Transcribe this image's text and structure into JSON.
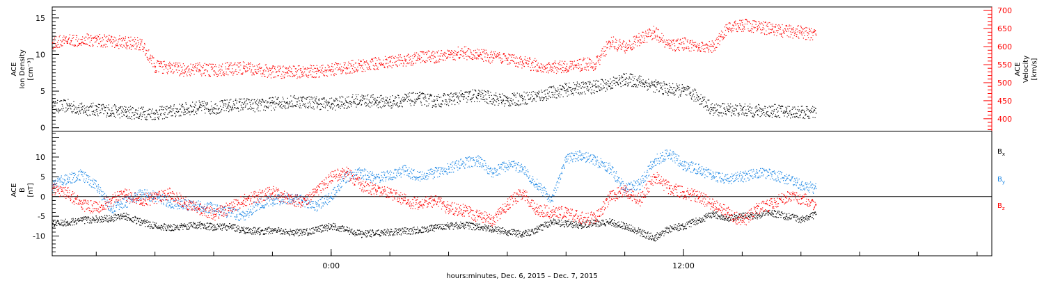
{
  "xaxis": {
    "label": "hours:minutes, Dec.  6, 2015 – Dec.  7, 2015",
    "range": [
      -9.5,
      22.5
    ],
    "tick_labels": [
      {
        "x": 0,
        "label": "0:00"
      },
      {
        "x": 12,
        "label": "12:00"
      }
    ],
    "minor_ticks": [
      -8,
      -6,
      -4,
      -2,
      0,
      2,
      4,
      6,
      8,
      10,
      12,
      14,
      16,
      18,
      20,
      22
    ]
  },
  "chart_data": [
    {
      "type": "scatter",
      "ylabel_left": [
        "ACE",
        "Ion Density",
        "[cm⁻³]"
      ],
      "ylabel_right": [
        "ACE",
        "Velocity",
        "[km/s]"
      ],
      "ylim_left": [
        -0.5,
        16.5
      ],
      "yticks_left": [
        0,
        5,
        10,
        15
      ],
      "ylim_right": [
        365,
        710
      ],
      "yticks_right": [
        400,
        450,
        500,
        550,
        600,
        650,
        700
      ],
      "grid": false,
      "colors": {
        "density": "#000000",
        "velocity": "#ff0000"
      },
      "series": [
        {
          "axis": "left",
          "color": "#000000",
          "x": [
            -9.5,
            -9,
            -8.5,
            -8,
            -7.5,
            -7,
            -6.5,
            -6,
            -5.5,
            -5,
            -4.5,
            -4,
            -3.5,
            -3,
            -2.5,
            -2,
            -1.5,
            -1,
            -0.5,
            0,
            0.5,
            1,
            1.5,
            2,
            2.5,
            3,
            3.5,
            4,
            4.5,
            5,
            5.5,
            6,
            6.5,
            7,
            7.5,
            8,
            8.5,
            9,
            9.5,
            10,
            10.5,
            11,
            11.5,
            12,
            12.5,
            13,
            13.5,
            14,
            14.5,
            15,
            15.5,
            16,
            16.5
          ],
          "values": [
            2.8,
            3,
            2.5,
            2.5,
            2.3,
            2.1,
            2,
            1.9,
            2.2,
            2.5,
            2.8,
            2.7,
            3,
            3.2,
            3,
            3.3,
            3.5,
            3.6,
            3.4,
            3.2,
            3.5,
            3.8,
            3.6,
            3.5,
            3.8,
            4,
            3.6,
            3.9,
            4.2,
            4.4,
            4,
            3.7,
            4,
            4.3,
            4.8,
            5.2,
            5.4,
            5.6,
            6,
            6.6,
            6.3,
            5.7,
            5.2,
            5,
            4.2,
            2.4,
            2.5,
            2.4,
            2.3,
            2.3,
            2.2,
            2.1,
            2.0
          ]
        },
        {
          "axis": "right",
          "color": "#ff0000",
          "x": [
            -9.5,
            -9,
            -8.5,
            -8,
            -7.5,
            -7,
            -6.5,
            -6,
            -5.5,
            -5,
            -4.5,
            -4,
            -3.5,
            -3,
            -2.5,
            -2,
            -1.5,
            -1,
            -0.5,
            0,
            0.5,
            1,
            1.5,
            2,
            2.5,
            3,
            3.5,
            4,
            4.5,
            5,
            5.5,
            6,
            6.5,
            7,
            7.5,
            8,
            8.5,
            9,
            9.5,
            10,
            10.5,
            11,
            11.5,
            12,
            12.5,
            13,
            13.5,
            14,
            14.5,
            15,
            15.5,
            16,
            16.5
          ],
          "values": [
            610,
            615,
            620,
            618,
            614,
            610,
            608,
            545,
            540,
            535,
            537,
            533,
            538,
            540,
            536,
            530,
            528,
            530,
            532,
            537,
            542,
            548,
            553,
            558,
            562,
            568,
            572,
            578,
            583,
            576,
            570,
            562,
            556,
            548,
            543,
            545,
            550,
            552,
            612,
            598,
            620,
            640,
            602,
            608,
            596,
            600,
            650,
            660,
            655,
            648,
            642,
            640,
            632
          ]
        }
      ]
    },
    {
      "type": "scatter",
      "ylabel_left": [
        "ACE",
        "B",
        "[nT]"
      ],
      "ylim": [
        -15,
        16.5
      ],
      "yticks": [
        -10,
        -5,
        0,
        5,
        10
      ],
      "grid": false,
      "zero_line": true,
      "legend_position": "right",
      "colors": {
        "Bx": "#000000",
        "By": "#1e88e5",
        "Bz": "#ff0000"
      },
      "series": [
        {
          "name": "B",
          "sub": "x",
          "color": "#000000",
          "x": [
            -9.5,
            -9,
            -8.5,
            -8,
            -7.5,
            -7,
            -6.5,
            -6,
            -5.5,
            -5,
            -4.5,
            -4,
            -3.5,
            -3,
            -2.5,
            -2,
            -1.5,
            -1,
            -0.5,
            0,
            0.5,
            1,
            1.5,
            2,
            2.5,
            3,
            3.5,
            4,
            4.5,
            5,
            5.5,
            6,
            6.5,
            7,
            7.5,
            8,
            8.5,
            9,
            9.5,
            10,
            10.5,
            11,
            11.5,
            12,
            12.5,
            13,
            13.5,
            14,
            14.5,
            15,
            15.5,
            16,
            16.5
          ],
          "values": [
            -7,
            -6.5,
            -6,
            -5.8,
            -5.5,
            -5,
            -6.5,
            -7.5,
            -7.8,
            -7.5,
            -7.2,
            -7.8,
            -7.6,
            -8.5,
            -8.8,
            -8.6,
            -9,
            -9.2,
            -8.5,
            -7.5,
            -8.5,
            -9.5,
            -9.3,
            -9,
            -8.8,
            -8.5,
            -8,
            -7.5,
            -7.2,
            -7.8,
            -8.2,
            -9,
            -9.6,
            -8.4,
            -6.5,
            -7,
            -7.2,
            -6.8,
            -6.5,
            -7.5,
            -9,
            -10.5,
            -8.2,
            -7.5,
            -6,
            -4.5,
            -5.5,
            -5,
            -4.8,
            -4.2,
            -5,
            -5.8,
            -4.5
          ]
        },
        {
          "name": "B",
          "sub": "y",
          "color": "#1e88e5",
          "x": [
            -9.5,
            -9,
            -8.5,
            -8,
            -7.5,
            -7,
            -6.5,
            -6,
            -5.5,
            -5,
            -4.5,
            -4,
            -3.5,
            -3,
            -2.5,
            -2,
            -1.5,
            -1,
            -0.5,
            0,
            0.5,
            1,
            1.5,
            2,
            2.5,
            3,
            3.5,
            4,
            4.5,
            5,
            5.5,
            6,
            6.5,
            7,
            7.5,
            8,
            8.5,
            9,
            9.5,
            10,
            10.5,
            11,
            11.5,
            12,
            12.5,
            13,
            13.5,
            14,
            14.5,
            15,
            15.5,
            16,
            16.5
          ],
          "values": [
            3,
            4.5,
            5.5,
            2.5,
            -3,
            -1.5,
            0.5,
            0,
            -1.5,
            -2,
            -2.5,
            -3,
            -4,
            -5,
            -2,
            -1,
            -0.5,
            -1,
            -2.5,
            0,
            5,
            6,
            4.5,
            5.5,
            6.5,
            5,
            6,
            7,
            8.5,
            9,
            6,
            8,
            7,
            3,
            -1,
            9.5,
            10.5,
            9,
            7,
            2,
            3,
            9,
            11,
            8,
            7,
            5,
            4.5,
            5,
            6,
            5.5,
            4.5,
            3,
            2
          ]
        },
        {
          "name": "B",
          "sub": "z",
          "color": "#ff0000",
          "x": [
            -9.5,
            -9,
            -8.5,
            -8,
            -7.5,
            -7,
            -6.5,
            -6,
            -5.5,
            -5,
            -4.5,
            -4,
            -3.5,
            -3,
            -2.5,
            -2,
            -1.5,
            -1,
            -0.5,
            0,
            0.5,
            1,
            1.5,
            2,
            2.5,
            3,
            3.5,
            4,
            4.5,
            5,
            5.5,
            6,
            6.5,
            7,
            7.5,
            8,
            8.5,
            9,
            9.5,
            10,
            10.5,
            11,
            11.5,
            12,
            12.5,
            13,
            13.5,
            14,
            14.5,
            15,
            15.5,
            16,
            16.5
          ],
          "values": [
            2,
            1,
            -2,
            -3,
            -1,
            0.5,
            -1,
            -0.5,
            1,
            -1.5,
            -3,
            -4.5,
            -3,
            -1,
            0,
            1,
            -0.5,
            -1.5,
            1,
            5,
            6,
            3,
            1.5,
            1,
            -1,
            -2,
            -1,
            -3,
            -3.5,
            -5,
            -6,
            -2,
            1,
            -3.5,
            -4,
            -4,
            -5.5,
            -5.5,
            0,
            1.5,
            -1,
            5,
            2,
            1,
            0,
            -2,
            -4,
            -6.5,
            -3,
            -2,
            0,
            -0.5,
            -2
          ]
        }
      ]
    }
  ]
}
